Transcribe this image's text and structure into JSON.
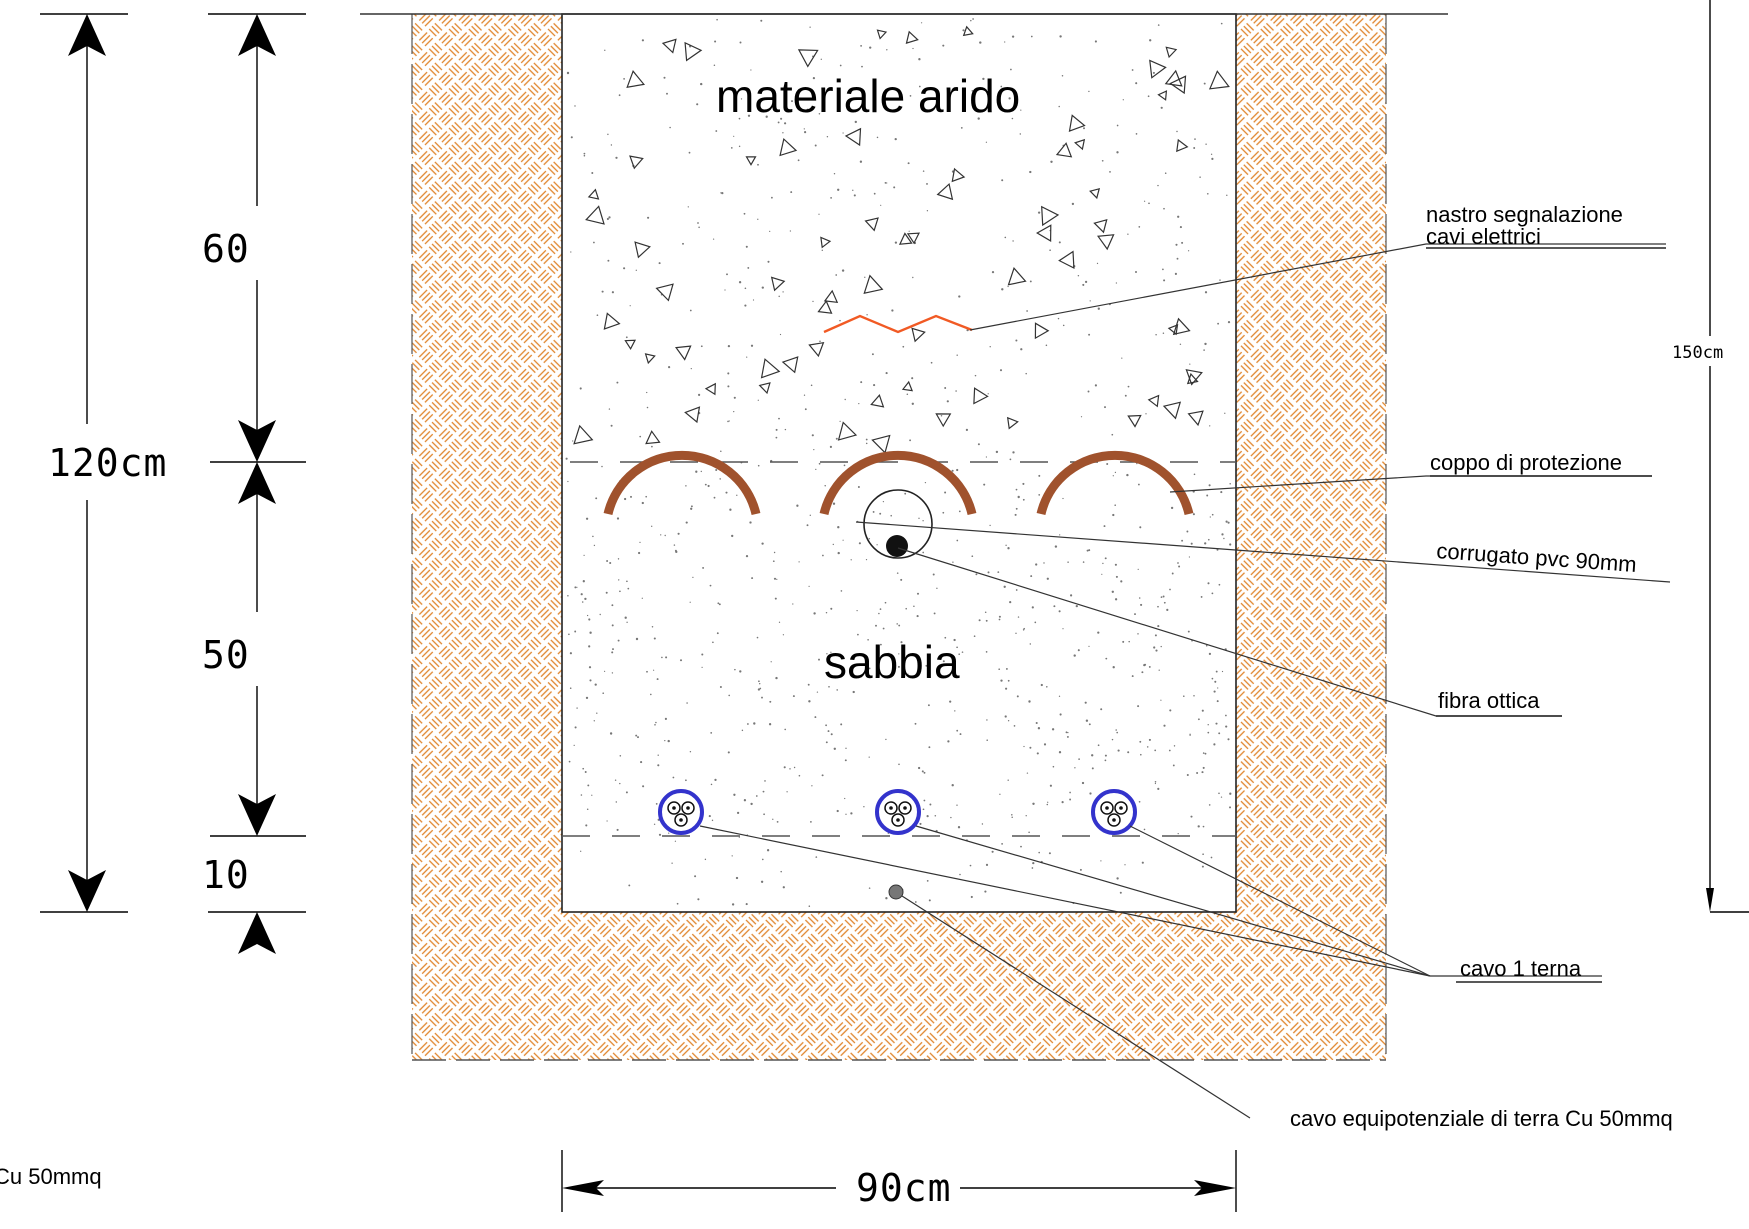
{
  "fill_layers": {
    "top_fill": "materiale arido",
    "bottom_fill": "sabbia"
  },
  "callouts": {
    "warning_tape": "nastro segnalazione",
    "warning_tape_line2": "cavi elettrici",
    "protection_tile": "coppo di protezione",
    "corrugated_pipe": "corrugato pvc 90mm",
    "fiber_optic": "fibra ottica",
    "cable_triplet": "cavo 1 terna",
    "earth_cable": "cavo equipotenziale di terra Cu 50mmq",
    "earth_cable_partial": "Cu 50mmq"
  },
  "dimensions": {
    "total_depth": "120cm",
    "upper_depth": "60",
    "middle_depth": "50",
    "bottom_depth": "10",
    "width": "90cm",
    "overall_depth": "150cm"
  },
  "colors": {
    "soil_hatch": "#e0852c",
    "warning_tape": "#f15a24",
    "tile": "#a0522d",
    "cable_ring": "#3333cc",
    "outline": "#222222"
  }
}
